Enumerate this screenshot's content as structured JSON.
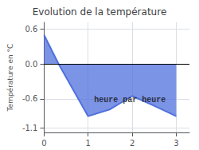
{
  "chart_data": {
    "type": "line",
    "title": "Evolution de la température",
    "ylabel": "Température en °C",
    "x": [
      0,
      0.33,
      1.0,
      1.5,
      2.0,
      2.5,
      3.0
    ],
    "values": [
      0.5,
      0.0,
      -0.9,
      -0.78,
      -0.55,
      -0.72,
      -0.9
    ],
    "xlim": [
      0,
      3.3
    ],
    "xticks": [
      0,
      1,
      2,
      3
    ],
    "ylim": [
      -1.18,
      0.72
    ],
    "yticks": [
      -1.1,
      -0.6,
      {
        "value": 0.0,
        "label": "0.0"
      },
      0.6
    ],
    "hline": 0.0,
    "annotations": [
      {
        "text": "heure par heure",
        "x": 1.95,
        "y": -0.62
      }
    ],
    "grid": true
  }
}
